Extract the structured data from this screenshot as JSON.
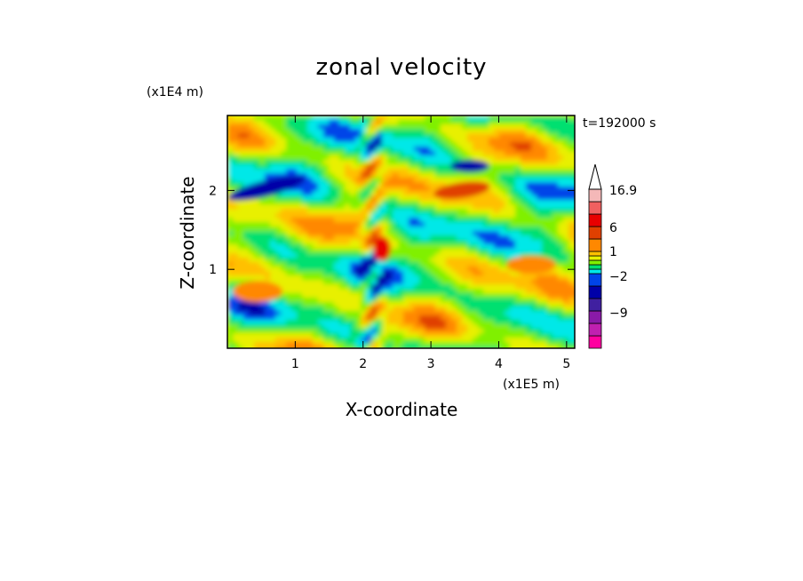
{
  "chart_data": {
    "type": "heatmap",
    "title": "zonal velocity",
    "xlabel": "X-coordinate",
    "ylabel": "Z-coordinate",
    "x_multiplier": "(x1E5 m)",
    "y_multiplier": "(x1E4 m)",
    "time_label": "t=192000 s",
    "xlim": [
      0,
      5.12
    ],
    "ylim": [
      0,
      2.95
    ],
    "x_ticks": [
      "1",
      "2",
      "3",
      "4",
      "5"
    ],
    "y_ticks": [
      "1",
      "2"
    ],
    "colorbar": {
      "labels": [
        "16.9",
        "6",
        "1",
        "−2",
        "−9"
      ],
      "levels": [
        {
          "color": "#ff00a0"
        },
        {
          "color": "#c020b0"
        },
        {
          "color": "#8a1aa8"
        },
        {
          "color": "#4020a0"
        },
        {
          "color": "#0000a8"
        },
        {
          "color": "#0044e8"
        },
        {
          "color": "#00e8e8"
        },
        {
          "color": "#00e070"
        },
        {
          "color": "#80f000"
        },
        {
          "color": "#e8f000"
        },
        {
          "color": "#ffc000"
        },
        {
          "color": "#ff8800"
        },
        {
          "color": "#e04000"
        },
        {
          "color": "#e80000"
        },
        {
          "color": "#f06060"
        },
        {
          "color": "#f4b8b8"
        }
      ]
    }
  }
}
